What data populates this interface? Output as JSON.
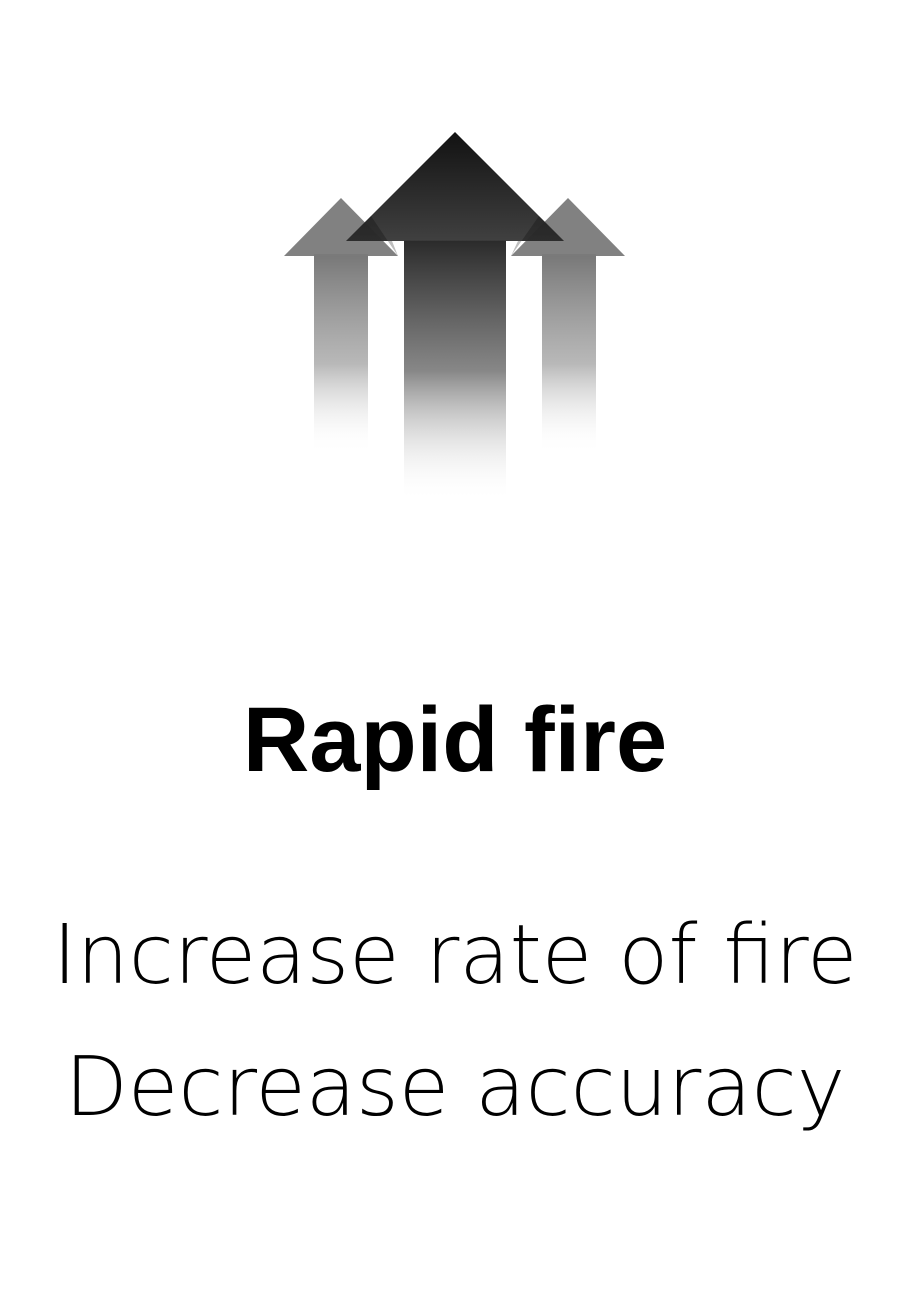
{
  "card": {
    "icon": "triple-up-arrows-icon",
    "title": "Rapid fire",
    "effects": [
      "Increase rate of fire",
      "Decrease accuracy"
    ]
  },
  "colors": {
    "background": "#ffffff",
    "text": "#000000",
    "arrow_dark": "#111111",
    "arrow_side": "#6e6e6e"
  }
}
